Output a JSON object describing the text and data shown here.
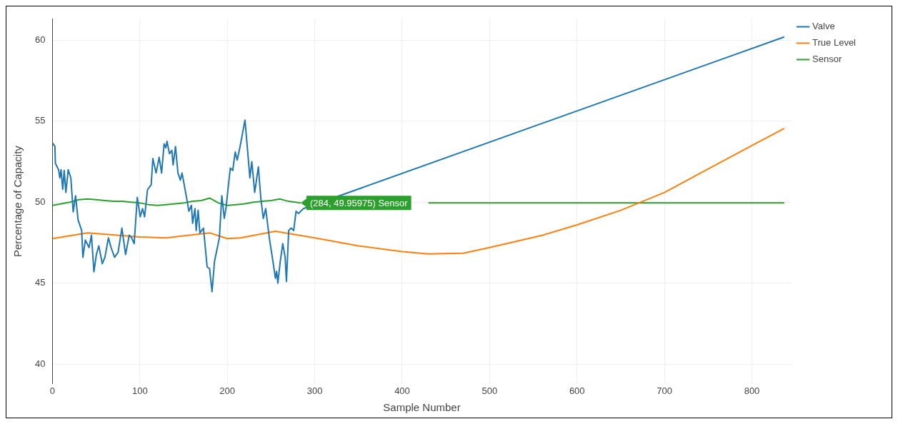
{
  "chart_data": {
    "type": "line",
    "xlabel": "Sample Number",
    "ylabel": "Percentage of Capacity",
    "xlim": [
      0,
      845
    ],
    "xticks": [
      0,
      100,
      200,
      300,
      400,
      500,
      600,
      700,
      800
    ],
    "ylim": [
      38.8,
      61.3
    ],
    "yticks": [
      40,
      45,
      50,
      55,
      60
    ],
    "grid": true,
    "legend": "top right",
    "marker": "none",
    "line_style": "solid",
    "annotations": [
      {
        "text": "(284, 49.95975) Sensor",
        "x": 284,
        "y": 49.95975
      }
    ],
    "series": [
      {
        "name": "Valve",
        "color": "#1f77b4",
        "x": [
          0,
          2.8,
          3.3,
          7,
          8.4,
          9.8,
          11.7,
          13.4,
          15.3,
          18,
          21,
          23.7,
          26.4,
          29.3,
          33.4,
          34.8,
          37.6,
          41.8,
          44.6,
          47.4,
          50.2,
          53,
          57,
          60,
          64,
          67,
          71,
          75,
          79.4,
          83.6,
          87.8,
          90.5,
          93.4,
          97,
          100.3,
          103,
          105.4,
          108.7,
          112.9,
          114.8,
          118.5,
          122,
          124.8,
          127.7,
          129.6,
          131,
          133.8,
          136.5,
          138,
          140.7,
          143.5,
          146.3,
          148.2,
          153.3,
          156,
          158.9,
          160.3,
          163,
          164.4,
          166.6,
          168.6,
          172.7,
          176.9,
          179.7,
          182.5,
          185.3,
          188.1,
          190.9,
          193.7,
          196.5,
          198.4,
          200.7,
          203.4,
          206.2,
          209,
          211.3,
          214.6,
          220.2,
          223,
          225.8,
          228,
          231.3,
          235.5,
          238.3,
          241.1,
          243.9,
          248,
          252.2,
          255,
          256.4,
          257.8,
          260.5,
          263.4,
          266.1,
          267.6,
          270.2,
          273,
          275.9,
          278.6,
          281.4,
          287,
          837
        ],
        "values": [
          53.66,
          53.44,
          52.4,
          52.0,
          51.5,
          52.0,
          50.8,
          51.96,
          50.6,
          52.0,
          51.5,
          49.4,
          50.4,
          48.9,
          48.25,
          46.6,
          47.66,
          47.2,
          47.96,
          45.7,
          46.77,
          47.3,
          46.2,
          46.6,
          47.8,
          47.2,
          46.6,
          46.9,
          48.4,
          46.77,
          47.96,
          47.8,
          47.44,
          50.3,
          49.1,
          49.6,
          49.1,
          50.77,
          51.07,
          52.7,
          51.8,
          52.77,
          51.8,
          53.6,
          53.36,
          53.76,
          52.99,
          53.2,
          52.3,
          53.44,
          51.8,
          51.36,
          51.8,
          50.3,
          49.44,
          49.8,
          48.7,
          49.6,
          48.25,
          49.5,
          48.1,
          48.4,
          46.0,
          45.9,
          44.47,
          46.33,
          47.07,
          47.8,
          50.4,
          49.0,
          49.6,
          50.77,
          52.1,
          51.96,
          53.1,
          52.6,
          53.44,
          55.07,
          53.3,
          51.5,
          52.5,
          50.6,
          52.18,
          50.25,
          49.0,
          49.6,
          47.8,
          46.33,
          45.3,
          45.73,
          45.0,
          46.33,
          47.44,
          46.6,
          45.1,
          48.25,
          48.4,
          48.25,
          49.44,
          49.3,
          49.6,
          60.2
        ]
      },
      {
        "name": "True Level",
        "color": "#ff7f0e",
        "x": [
          0,
          40,
          100,
          130,
          180,
          200,
          215,
          255,
          300,
          350,
          400,
          430,
          470,
          500,
          560,
          600,
          650,
          700,
          750,
          800,
          837
        ],
        "values": [
          47.75,
          48.1,
          47.85,
          47.8,
          48.1,
          47.75,
          47.8,
          48.2,
          47.8,
          47.3,
          46.95,
          46.8,
          46.85,
          47.2,
          47.95,
          48.6,
          49.5,
          50.6,
          52.05,
          53.5,
          54.55
        ]
      },
      {
        "name": "Sensor",
        "color": "#2ca02c",
        "x": [
          0,
          10,
          20,
          30,
          40,
          50,
          60,
          70,
          80,
          90,
          100,
          110,
          120,
          130,
          140,
          150,
          160,
          170,
          180,
          190,
          200,
          210,
          220,
          230,
          240,
          250,
          260,
          270,
          284,
          350,
          430,
          837
        ],
        "values": [
          49.8,
          49.9,
          50.0,
          50.15,
          50.2,
          50.15,
          50.1,
          50.05,
          50.05,
          50.0,
          49.95,
          49.85,
          49.8,
          49.85,
          49.9,
          49.95,
          50.05,
          50.1,
          50.25,
          49.95,
          49.8,
          49.85,
          49.9,
          50.0,
          50.05,
          50.1,
          50.2,
          50.05,
          49.96,
          null,
          49.96,
          49.96
        ]
      }
    ]
  }
}
